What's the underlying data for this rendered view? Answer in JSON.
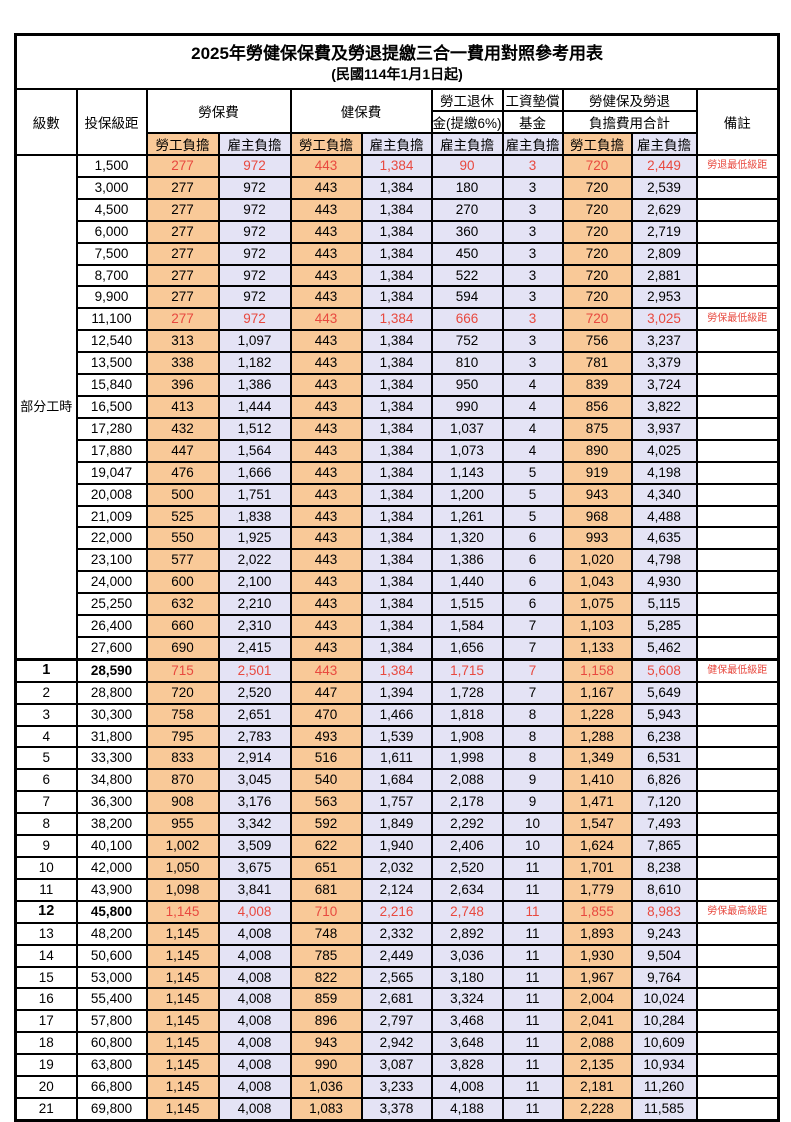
{
  "title": "2025年勞健保保費及勞退提繳三合一費用對照參考用表",
  "subtitle": "(民國114年1月1日起)",
  "header": {
    "level": "級數",
    "bracket": "投保級距",
    "labor_insurance": "勞保費",
    "health_insurance": "健保費",
    "pension_line1": "勞工退休",
    "pension_line2": "金(提繳6%)",
    "wage_fund_line1": "工資墊償",
    "wage_fund_line2": "基金",
    "total_line1": "勞健保及勞退",
    "total_line2": "負擔費用合計",
    "note": "備註",
    "employee_burden": "勞工負擔",
    "employer_burden": "雇主負擔"
  },
  "part_time_label": "部分工時",
  "rows": [
    {
      "level": "",
      "bracket": "1,500",
      "values": [
        "277",
        "972",
        "443",
        "1,384",
        "90",
        "3",
        "720",
        "2,449"
      ],
      "note": "勞退最低級距",
      "red": true,
      "key": false
    },
    {
      "level": "",
      "bracket": "3,000",
      "values": [
        "277",
        "972",
        "443",
        "1,384",
        "180",
        "3",
        "720",
        "2,539"
      ],
      "note": "",
      "red": false,
      "key": false
    },
    {
      "level": "",
      "bracket": "4,500",
      "values": [
        "277",
        "972",
        "443",
        "1,384",
        "270",
        "3",
        "720",
        "2,629"
      ],
      "note": "",
      "red": false,
      "key": false
    },
    {
      "level": "",
      "bracket": "6,000",
      "values": [
        "277",
        "972",
        "443",
        "1,384",
        "360",
        "3",
        "720",
        "2,719"
      ],
      "note": "",
      "red": false,
      "key": false
    },
    {
      "level": "",
      "bracket": "7,500",
      "values": [
        "277",
        "972",
        "443",
        "1,384",
        "450",
        "3",
        "720",
        "2,809"
      ],
      "note": "",
      "red": false,
      "key": false
    },
    {
      "level": "",
      "bracket": "8,700",
      "values": [
        "277",
        "972",
        "443",
        "1,384",
        "522",
        "3",
        "720",
        "2,881"
      ],
      "note": "",
      "red": false,
      "key": false
    },
    {
      "level": "",
      "bracket": "9,900",
      "values": [
        "277",
        "972",
        "443",
        "1,384",
        "594",
        "3",
        "720",
        "2,953"
      ],
      "note": "",
      "red": false,
      "key": false
    },
    {
      "level": "",
      "bracket": "11,100",
      "values": [
        "277",
        "972",
        "443",
        "1,384",
        "666",
        "3",
        "720",
        "3,025"
      ],
      "note": "勞保最低級距",
      "red": true,
      "key": false
    },
    {
      "level": "",
      "bracket": "12,540",
      "values": [
        "313",
        "1,097",
        "443",
        "1,384",
        "752",
        "3",
        "756",
        "3,237"
      ],
      "note": "",
      "red": false,
      "key": false
    },
    {
      "level": "",
      "bracket": "13,500",
      "values": [
        "338",
        "1,182",
        "443",
        "1,384",
        "810",
        "3",
        "781",
        "3,379"
      ],
      "note": "",
      "red": false,
      "key": false
    },
    {
      "level": "",
      "bracket": "15,840",
      "values": [
        "396",
        "1,386",
        "443",
        "1,384",
        "950",
        "4",
        "839",
        "3,724"
      ],
      "note": "",
      "red": false,
      "key": false
    },
    {
      "level": "",
      "bracket": "16,500",
      "values": [
        "413",
        "1,444",
        "443",
        "1,384",
        "990",
        "4",
        "856",
        "3,822"
      ],
      "note": "",
      "red": false,
      "key": false
    },
    {
      "level": "",
      "bracket": "17,280",
      "values": [
        "432",
        "1,512",
        "443",
        "1,384",
        "1,037",
        "4",
        "875",
        "3,937"
      ],
      "note": "",
      "red": false,
      "key": false
    },
    {
      "level": "",
      "bracket": "17,880",
      "values": [
        "447",
        "1,564",
        "443",
        "1,384",
        "1,073",
        "4",
        "890",
        "4,025"
      ],
      "note": "",
      "red": false,
      "key": false
    },
    {
      "level": "",
      "bracket": "19,047",
      "values": [
        "476",
        "1,666",
        "443",
        "1,384",
        "1,143",
        "5",
        "919",
        "4,198"
      ],
      "note": "",
      "red": false,
      "key": false
    },
    {
      "level": "",
      "bracket": "20,008",
      "values": [
        "500",
        "1,751",
        "443",
        "1,384",
        "1,200",
        "5",
        "943",
        "4,340"
      ],
      "note": "",
      "red": false,
      "key": false
    },
    {
      "level": "",
      "bracket": "21,009",
      "values": [
        "525",
        "1,838",
        "443",
        "1,384",
        "1,261",
        "5",
        "968",
        "4,488"
      ],
      "note": "",
      "red": false,
      "key": false
    },
    {
      "level": "",
      "bracket": "22,000",
      "values": [
        "550",
        "1,925",
        "443",
        "1,384",
        "1,320",
        "6",
        "993",
        "4,635"
      ],
      "note": "",
      "red": false,
      "key": false
    },
    {
      "level": "",
      "bracket": "23,100",
      "values": [
        "577",
        "2,022",
        "443",
        "1,384",
        "1,386",
        "6",
        "1,020",
        "4,798"
      ],
      "note": "",
      "red": false,
      "key": false
    },
    {
      "level": "",
      "bracket": "24,000",
      "values": [
        "600",
        "2,100",
        "443",
        "1,384",
        "1,440",
        "6",
        "1,043",
        "4,930"
      ],
      "note": "",
      "red": false,
      "key": false
    },
    {
      "level": "",
      "bracket": "25,250",
      "values": [
        "632",
        "2,210",
        "443",
        "1,384",
        "1,515",
        "6",
        "1,075",
        "5,115"
      ],
      "note": "",
      "red": false,
      "key": false
    },
    {
      "level": "",
      "bracket": "26,400",
      "values": [
        "660",
        "2,310",
        "443",
        "1,384",
        "1,584",
        "7",
        "1,103",
        "5,285"
      ],
      "note": "",
      "red": false,
      "key": false
    },
    {
      "level": "",
      "bracket": "27,600",
      "values": [
        "690",
        "2,415",
        "443",
        "1,384",
        "1,656",
        "7",
        "1,133",
        "5,462"
      ],
      "note": "",
      "red": false,
      "key": false
    },
    {
      "level": "1",
      "bracket": "28,590",
      "values": [
        "715",
        "2,501",
        "443",
        "1,384",
        "1,715",
        "7",
        "1,158",
        "5,608"
      ],
      "note": "健保最低級距",
      "red": true,
      "key": true
    },
    {
      "level": "2",
      "bracket": "28,800",
      "values": [
        "720",
        "2,520",
        "447",
        "1,394",
        "1,728",
        "7",
        "1,167",
        "5,649"
      ],
      "note": "",
      "red": false,
      "key": false
    },
    {
      "level": "3",
      "bracket": "30,300",
      "values": [
        "758",
        "2,651",
        "470",
        "1,466",
        "1,818",
        "8",
        "1,228",
        "5,943"
      ],
      "note": "",
      "red": false,
      "key": false
    },
    {
      "level": "4",
      "bracket": "31,800",
      "values": [
        "795",
        "2,783",
        "493",
        "1,539",
        "1,908",
        "8",
        "1,288",
        "6,238"
      ],
      "note": "",
      "red": false,
      "key": false
    },
    {
      "level": "5",
      "bracket": "33,300",
      "values": [
        "833",
        "2,914",
        "516",
        "1,611",
        "1,998",
        "8",
        "1,349",
        "6,531"
      ],
      "note": "",
      "red": false,
      "key": false
    },
    {
      "level": "6",
      "bracket": "34,800",
      "values": [
        "870",
        "3,045",
        "540",
        "1,684",
        "2,088",
        "9",
        "1,410",
        "6,826"
      ],
      "note": "",
      "red": false,
      "key": false
    },
    {
      "level": "7",
      "bracket": "36,300",
      "values": [
        "908",
        "3,176",
        "563",
        "1,757",
        "2,178",
        "9",
        "1,471",
        "7,120"
      ],
      "note": "",
      "red": false,
      "key": false
    },
    {
      "level": "8",
      "bracket": "38,200",
      "values": [
        "955",
        "3,342",
        "592",
        "1,849",
        "2,292",
        "10",
        "1,547",
        "7,493"
      ],
      "note": "",
      "red": false,
      "key": false
    },
    {
      "level": "9",
      "bracket": "40,100",
      "values": [
        "1,002",
        "3,509",
        "622",
        "1,940",
        "2,406",
        "10",
        "1,624",
        "7,865"
      ],
      "note": "",
      "red": false,
      "key": false
    },
    {
      "level": "10",
      "bracket": "42,000",
      "values": [
        "1,050",
        "3,675",
        "651",
        "2,032",
        "2,520",
        "11",
        "1,701",
        "8,238"
      ],
      "note": "",
      "red": false,
      "key": false
    },
    {
      "level": "11",
      "bracket": "43,900",
      "values": [
        "1,098",
        "3,841",
        "681",
        "2,124",
        "2,634",
        "11",
        "1,779",
        "8,610"
      ],
      "note": "",
      "red": false,
      "key": false
    },
    {
      "level": "12",
      "bracket": "45,800",
      "values": [
        "1,145",
        "4,008",
        "710",
        "2,216",
        "2,748",
        "11",
        "1,855",
        "8,983"
      ],
      "note": "勞保最高級距",
      "red": true,
      "key": true
    },
    {
      "level": "13",
      "bracket": "48,200",
      "values": [
        "1,145",
        "4,008",
        "748",
        "2,332",
        "2,892",
        "11",
        "1,893",
        "9,243"
      ],
      "note": "",
      "red": false,
      "key": false
    },
    {
      "level": "14",
      "bracket": "50,600",
      "values": [
        "1,145",
        "4,008",
        "785",
        "2,449",
        "3,036",
        "11",
        "1,930",
        "9,504"
      ],
      "note": "",
      "red": false,
      "key": false
    },
    {
      "level": "15",
      "bracket": "53,000",
      "values": [
        "1,145",
        "4,008",
        "822",
        "2,565",
        "3,180",
        "11",
        "1,967",
        "9,764"
      ],
      "note": "",
      "red": false,
      "key": false
    },
    {
      "level": "16",
      "bracket": "55,400",
      "values": [
        "1,145",
        "4,008",
        "859",
        "2,681",
        "3,324",
        "11",
        "2,004",
        "10,024"
      ],
      "note": "",
      "red": false,
      "key": false
    },
    {
      "level": "17",
      "bracket": "57,800",
      "values": [
        "1,145",
        "4,008",
        "896",
        "2,797",
        "3,468",
        "11",
        "2,041",
        "10,284"
      ],
      "note": "",
      "red": false,
      "key": false
    },
    {
      "level": "18",
      "bracket": "60,800",
      "values": [
        "1,145",
        "4,008",
        "943",
        "2,942",
        "3,648",
        "11",
        "2,088",
        "10,609"
      ],
      "note": "",
      "red": false,
      "key": false
    },
    {
      "level": "19",
      "bracket": "63,800",
      "values": [
        "1,145",
        "4,008",
        "990",
        "3,087",
        "3,828",
        "11",
        "2,135",
        "10,934"
      ],
      "note": "",
      "red": false,
      "key": false
    },
    {
      "level": "20",
      "bracket": "66,800",
      "values": [
        "1,145",
        "4,008",
        "1,036",
        "3,233",
        "4,008",
        "11",
        "2,181",
        "11,260"
      ],
      "note": "",
      "red": false,
      "key": false
    },
    {
      "level": "21",
      "bracket": "69,800",
      "values": [
        "1,145",
        "4,008",
        "1,083",
        "3,378",
        "4,188",
        "11",
        "2,228",
        "11,585"
      ],
      "note": "",
      "red": false,
      "key": false
    }
  ],
  "colors": {
    "employee_bg": "#f9c998",
    "employer_bg": "#e4e3f5",
    "highlight_text": "#e8493f",
    "border": "#000000"
  }
}
